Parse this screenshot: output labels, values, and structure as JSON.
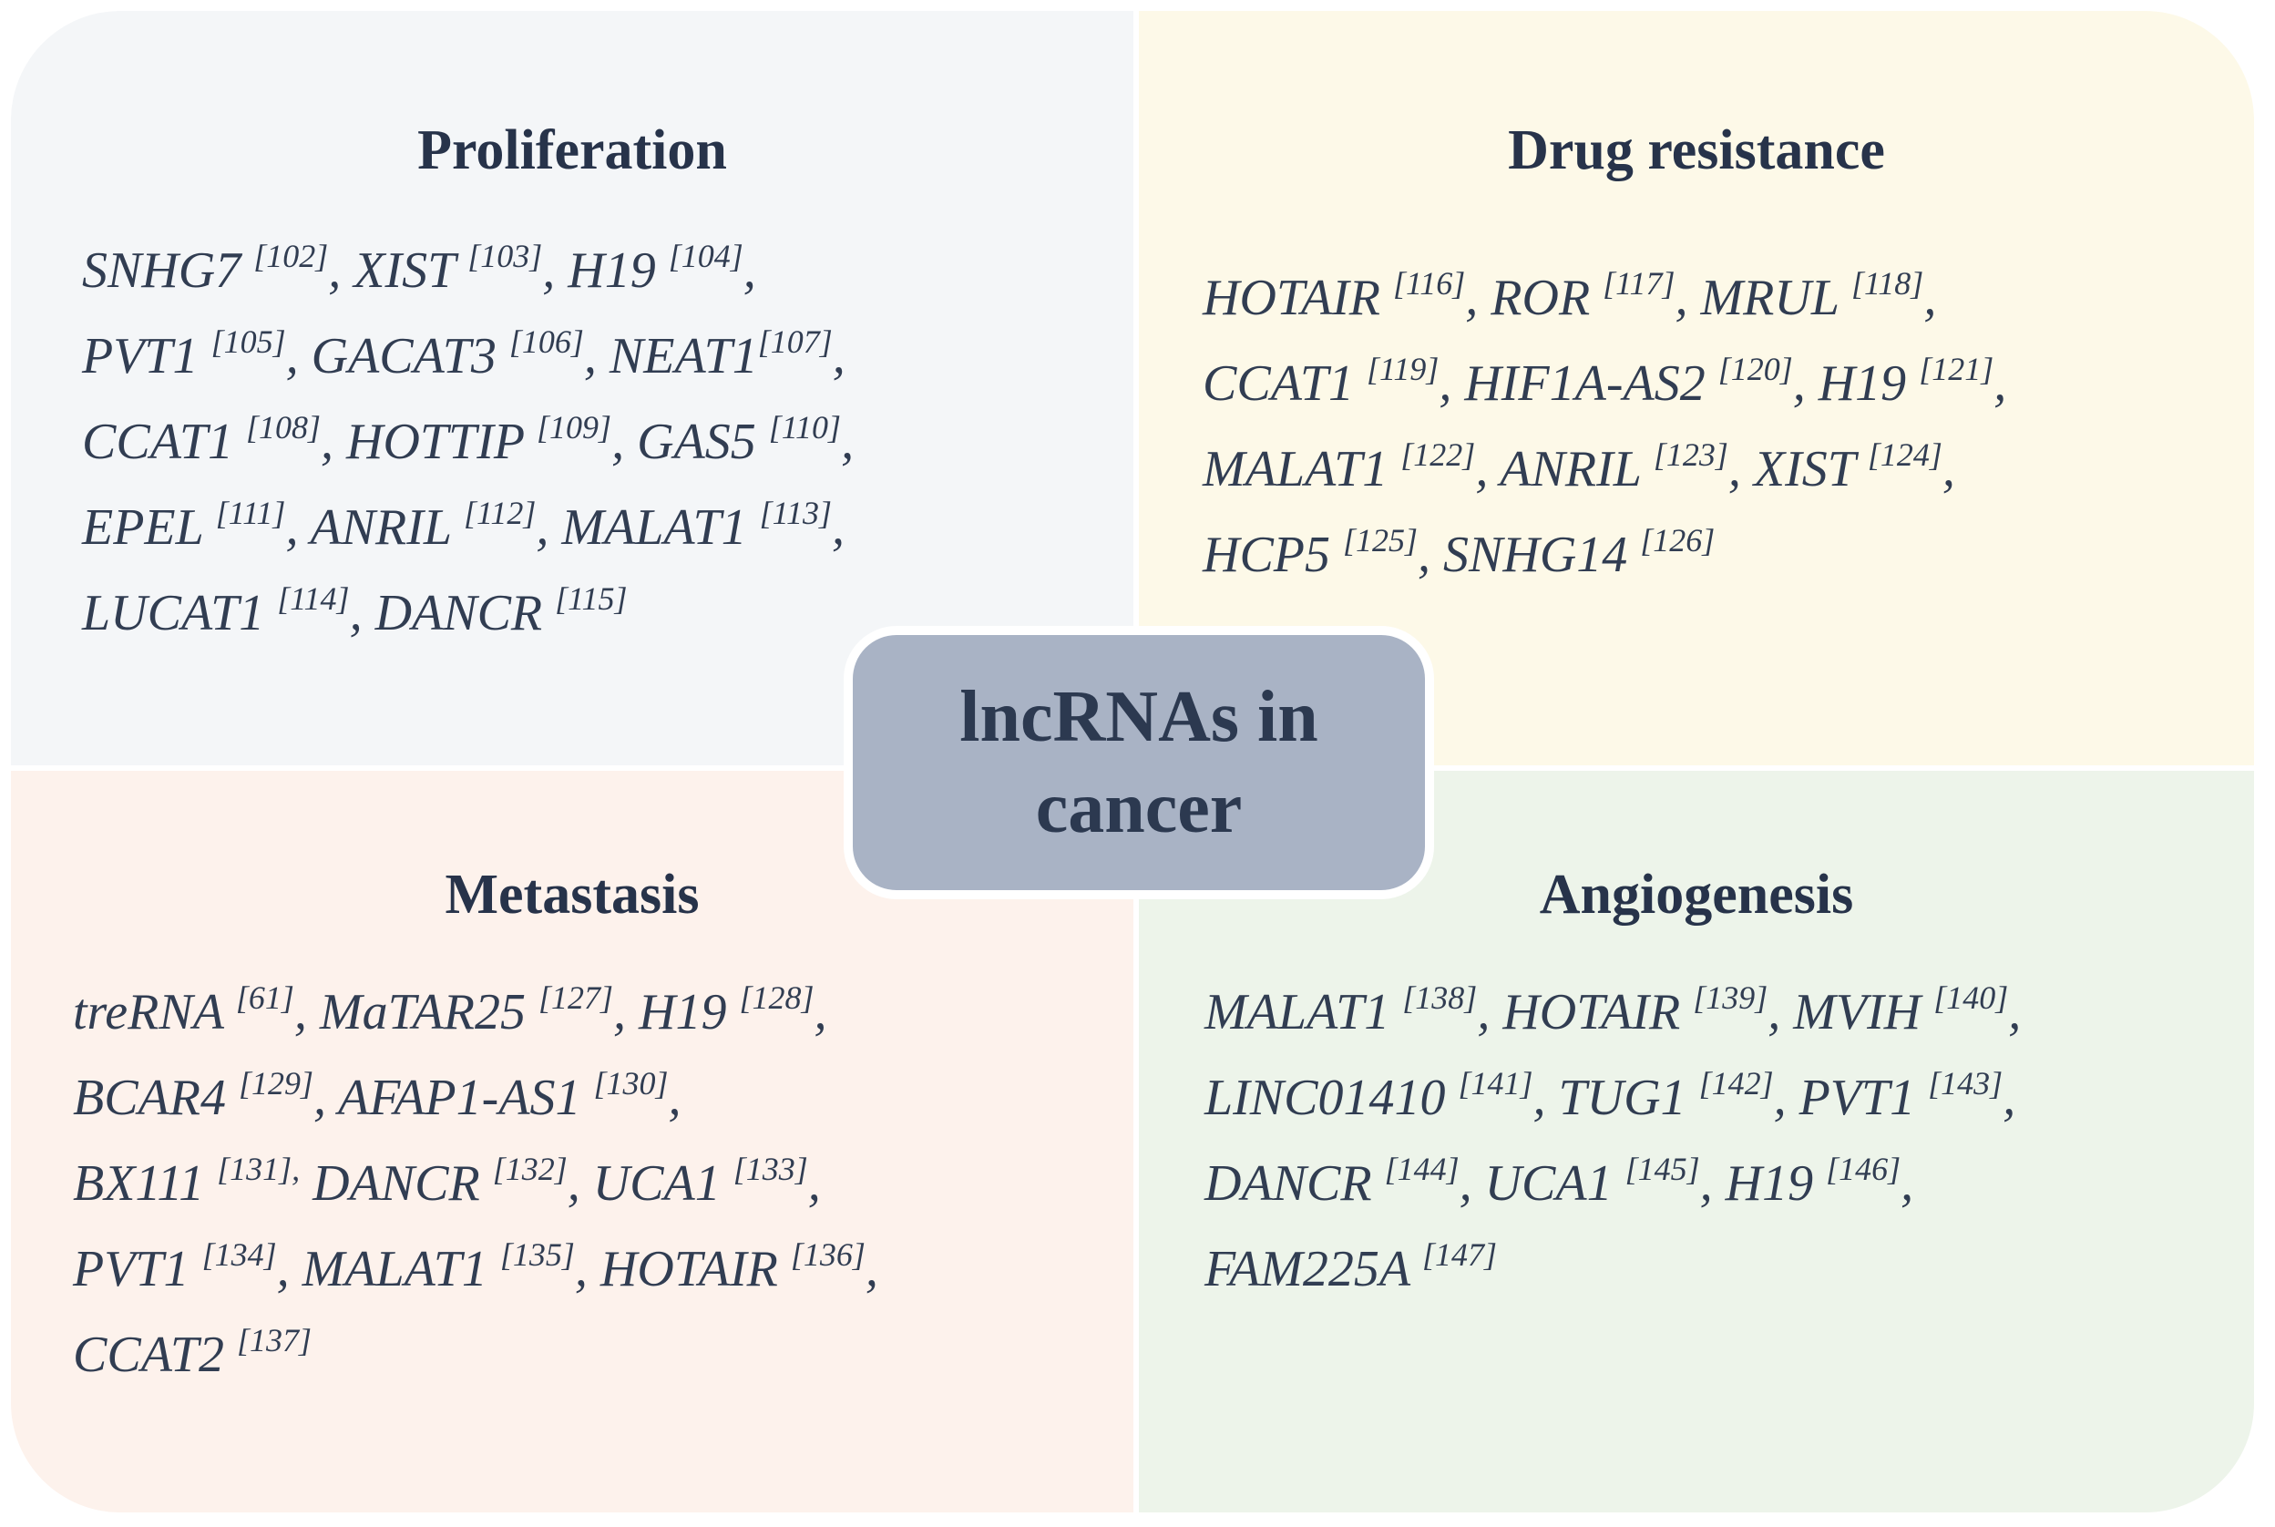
{
  "figure_title": "lncRNAs in cancer",
  "center": {
    "line1": "lncRNAs in",
    "line2": "cancer",
    "bg": "#a9b3c5",
    "border": "#ffffff",
    "text_color": "#2c3950"
  },
  "colors": {
    "page_bg": "#ffffff",
    "title_text": "#27334a",
    "body_text": "#313d52"
  },
  "quadrants": [
    {
      "id": "proliferation",
      "title": "Proliferation",
      "position": "top-left",
      "bg": "#f4f6f8",
      "lines": [
        [
          {
            "t": "SNHG7 "
          },
          {
            "s": "[102]"
          },
          {
            "t": ", XIST "
          },
          {
            "s": "[103]"
          },
          {
            "t": ", H19 "
          },
          {
            "s": "[104]"
          },
          {
            "t": ","
          }
        ],
        [
          {
            "t": "PVT1 "
          },
          {
            "s": "[105]"
          },
          {
            "t": ", GACAT3 "
          },
          {
            "s": "[106]"
          },
          {
            "t": ", NEAT1"
          },
          {
            "s": "[107]"
          },
          {
            "t": ","
          }
        ],
        [
          {
            "t": "CCAT1 "
          },
          {
            "s": "[108]"
          },
          {
            "t": ", HOTTIP "
          },
          {
            "s": "[109]"
          },
          {
            "t": ", GAS5 "
          },
          {
            "s": "[110]"
          },
          {
            "t": ","
          }
        ],
        [
          {
            "t": "EPEL "
          },
          {
            "s": "[111]"
          },
          {
            "t": ", ANRIL "
          },
          {
            "s": "[112]"
          },
          {
            "t": ", MALAT1 "
          },
          {
            "s": "[113]"
          },
          {
            "t": ","
          }
        ],
        [
          {
            "t": "LUCAT1 "
          },
          {
            "s": "[114]"
          },
          {
            "t": ", DANCR "
          },
          {
            "s": "[115]"
          }
        ]
      ]
    },
    {
      "id": "drug-resistance",
      "title": "Drug resistance",
      "position": "top-right",
      "bg": "#fdf9e8",
      "lines": [
        [
          {
            "t": "HOTAIR "
          },
          {
            "s": "[116]"
          },
          {
            "t": ", ROR "
          },
          {
            "s": "[117]"
          },
          {
            "t": ", MRUL "
          },
          {
            "s": "[118]"
          },
          {
            "t": ","
          }
        ],
        [
          {
            "t": "CCAT1 "
          },
          {
            "s": "[119]"
          },
          {
            "t": ", HIF1A-AS2 "
          },
          {
            "s": "[120]"
          },
          {
            "t": ", H19 "
          },
          {
            "s": "[121]"
          },
          {
            "t": ","
          }
        ],
        [
          {
            "t": "MALAT1 "
          },
          {
            "s": "[122]"
          },
          {
            "t": ", ANRIL "
          },
          {
            "s": "[123]"
          },
          {
            "t": ", XIST "
          },
          {
            "s": "[124]"
          },
          {
            "t": ","
          }
        ],
        [
          {
            "t": "HCP5 "
          },
          {
            "s": "[125]"
          },
          {
            "t": ", SNHG14 "
          },
          {
            "s": "[126]"
          }
        ]
      ]
    },
    {
      "id": "metastasis",
      "title": "Metastasis",
      "position": "bottom-left",
      "bg": "#fdf2ec",
      "lines": [
        [
          {
            "t": "treRNA "
          },
          {
            "s": "[61]"
          },
          {
            "t": ", MaTAR25 "
          },
          {
            "s": "[127]"
          },
          {
            "t": ", H19 "
          },
          {
            "s": "[128]"
          },
          {
            "t": ","
          }
        ],
        [
          {
            "t": "BCAR4 "
          },
          {
            "s": "[129]"
          },
          {
            "t": ", AFAP1-AS1 "
          },
          {
            "s": "[130]"
          },
          {
            "t": ","
          }
        ],
        [
          {
            "t": "BX111 "
          },
          {
            "s": "[131],"
          },
          {
            "t": " DANCR "
          },
          {
            "s": "[132]"
          },
          {
            "t": ", UCA1 "
          },
          {
            "s": "[133]"
          },
          {
            "t": ","
          }
        ],
        [
          {
            "t": "PVT1 "
          },
          {
            "s": "[134]"
          },
          {
            "t": ", MALAT1 "
          },
          {
            "s": "[135]"
          },
          {
            "t": ", HOTAIR "
          },
          {
            "s": "[136]"
          },
          {
            "t": ","
          }
        ],
        [
          {
            "t": "CCAT2 "
          },
          {
            "s": "[137]"
          }
        ]
      ]
    },
    {
      "id": "angiogenesis",
      "title": "Angiogenesis",
      "position": "bottom-right",
      "bg": "#edf4ea",
      "lines": [
        [
          {
            "t": "MALAT1 "
          },
          {
            "s": "[138]"
          },
          {
            "t": ", HOTAIR "
          },
          {
            "s": "[139]"
          },
          {
            "t": ", MVIH "
          },
          {
            "s": "[140]"
          },
          {
            "t": ","
          }
        ],
        [
          {
            "t": "LINC01410 "
          },
          {
            "s": "[141]"
          },
          {
            "t": ", TUG1 "
          },
          {
            "s": "[142]"
          },
          {
            "t": ", PVT1 "
          },
          {
            "s": "[143]"
          },
          {
            "t": ","
          }
        ],
        [
          {
            "t": "DANCR "
          },
          {
            "s": "[144]"
          },
          {
            "t": ", UCA1 "
          },
          {
            "s": "[145]"
          },
          {
            "t": ", H19 "
          },
          {
            "s": "[146]"
          },
          {
            "t": ","
          }
        ],
        [
          {
            "t": "FAM225A "
          },
          {
            "s": "[147]"
          }
        ]
      ]
    }
  ]
}
